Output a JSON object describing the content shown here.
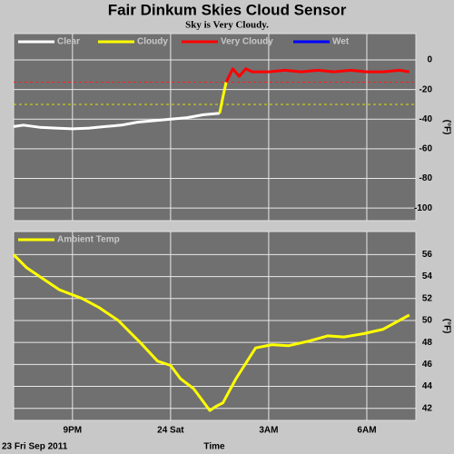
{
  "chart_data": [
    {
      "type": "line",
      "title": "Fair Dinkum Skies Cloud Sensor",
      "subtitle": "Sky is Very Cloudy.",
      "ylabel": "(°F)",
      "xlim": [
        19.2,
        31.5
      ],
      "ylim": [
        -108.5,
        17.8
      ],
      "xticks": [
        21,
        24,
        27,
        30
      ],
      "show_xtick_labels": false,
      "yticks": [
        0,
        -20,
        -40,
        -60,
        -80,
        -100
      ],
      "grid": true,
      "background": "#707070",
      "thresholds": [
        {
          "value": -15,
          "color": "#ff2020"
        },
        {
          "value": -30,
          "color": "#e0e000"
        }
      ],
      "series": [
        {
          "name": "Clear",
          "color": "#ffffff",
          "x": [
            19.2,
            19.5,
            20,
            20.5,
            21,
            21.5,
            22,
            22.5,
            23,
            23.5,
            24,
            24.5,
            25,
            25.5
          ],
          "values": [
            -45,
            -44,
            -45.5,
            -46,
            -46.5,
            -46,
            -45,
            -44,
            -42,
            -41,
            -40,
            -39,
            -37,
            -36
          ]
        },
        {
          "name": "Cloudy",
          "color": "#ffff00",
          "x": [
            25.5,
            25.6,
            25.7
          ],
          "values": [
            -36,
            -25,
            -15
          ]
        },
        {
          "name": "Very Cloudy",
          "color": "#ff0000",
          "x": [
            25.7,
            25.9,
            26.1,
            26.3,
            26.5,
            27,
            27.5,
            28,
            28.5,
            29,
            29.5,
            30,
            30.5,
            31,
            31.3
          ],
          "values": [
            -15,
            -6,
            -11,
            -6,
            -8,
            -8,
            -7,
            -8,
            -7,
            -8,
            -7,
            -8,
            -8,
            -7,
            -8
          ]
        },
        {
          "name": "Wet",
          "color": "#0000ff",
          "x": [],
          "values": []
        }
      ]
    },
    {
      "type": "line",
      "ylabel": "(°F)",
      "xlabel": "Time",
      "annotation": "23 Fri Sep 2011",
      "xlim": [
        19.2,
        31.5
      ],
      "ylim": [
        40.9,
        58.1
      ],
      "xticks": [
        {
          "value": 21,
          "label": "9PM"
        },
        {
          "value": 24,
          "label": "24 Sat"
        },
        {
          "value": 27,
          "label": "3AM"
        },
        {
          "value": 30,
          "label": "6AM"
        }
      ],
      "show_xtick_labels": true,
      "yticks": [
        42,
        44,
        46,
        48,
        50,
        52,
        54,
        56
      ],
      "grid": true,
      "background": "#707070",
      "series": [
        {
          "name": "Ambient Temp",
          "color": "#ffff00",
          "x": [
            19.2,
            19.6,
            20,
            20.6,
            21.3,
            21.8,
            22.4,
            23.1,
            23.6,
            24,
            24.3,
            24.7,
            25,
            25.2,
            25.4,
            25.6,
            26,
            26.6,
            27.1,
            27.6,
            28.2,
            28.8,
            29.3,
            29.9,
            30.5,
            31.3
          ],
          "values": [
            56,
            54.8,
            54,
            52.8,
            52,
            51.2,
            50,
            47.9,
            46.3,
            45.9,
            44.7,
            43.8,
            42.6,
            41.8,
            42.2,
            42.5,
            44.7,
            47.5,
            47.8,
            47.7,
            48.1,
            48.6,
            48.5,
            48.8,
            49.2,
            50.5
          ]
        }
      ]
    }
  ]
}
